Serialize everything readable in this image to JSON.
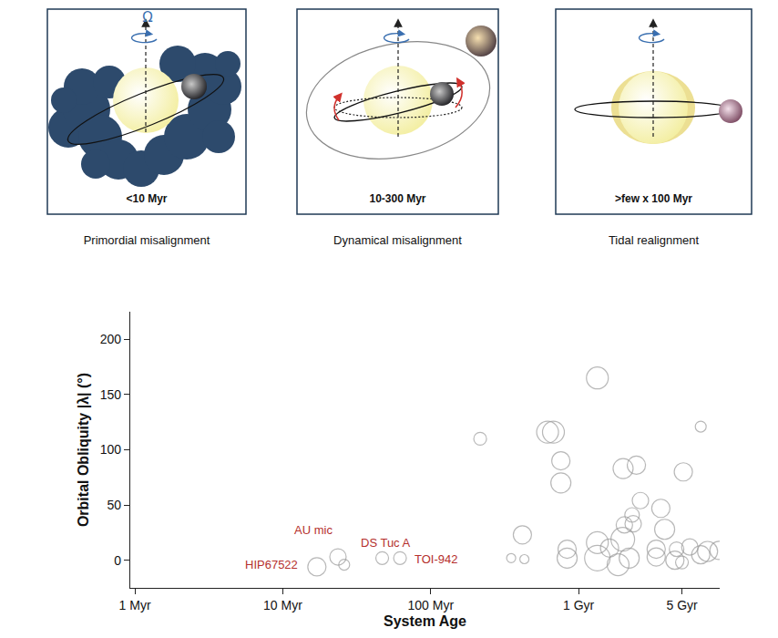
{
  "diagram": {
    "omega_label": "Ω",
    "panels": [
      {
        "age": "<10 Myr",
        "caption": "Primordial misalignment"
      },
      {
        "age": "10-300 Myr",
        "caption": "Dynamical misalignment"
      },
      {
        "age": ">few x 100 Myr",
        "caption": "Tidal realignment"
      }
    ]
  },
  "chart_data": {
    "type": "scatter",
    "marker": "circle-open",
    "color": "#9a9a9a",
    "x_label": "System Age",
    "y_label": "Orbital Obliquity |λ| (°)",
    "log": "x",
    "grid": false,
    "xlim": [
      0.93,
      9000
    ],
    "xticks": [
      {
        "value": 1,
        "label": "1 Myr"
      },
      {
        "value": 10,
        "label": "10 Myr"
      },
      {
        "value": 100,
        "label": "100 Myr"
      },
      {
        "value": 1000,
        "label": "1 Gyr"
      },
      {
        "value": 5000,
        "label": "5 Gyr"
      }
    ],
    "ylim": [
      -25,
      225
    ],
    "yticks": [
      0,
      50,
      100,
      150,
      200
    ],
    "x": [
      17,
      23.6,
      26,
      47,
      62,
      216,
      350,
      430,
      417,
      617,
      676,
      759,
      759,
      837,
      837,
      1340,
      1340,
      1340,
      1620,
      1850,
      1990,
      2040,
      2340,
      2300,
      2200,
      2000,
      2460,
      2620,
      3350,
      3350,
      3600,
      3820,
      4480,
      5110,
      4600,
      5650,
      6700,
      6700,
      7450,
      8900,
      5000
    ],
    "values": [
      -6,
      3,
      -4,
      2,
      2,
      110,
      2,
      1,
      23,
      116,
      116,
      70,
      90,
      2,
      10,
      165,
      2,
      16,
      11,
      -4,
      19,
      32,
      33,
      41,
      2,
      83,
      86,
      54,
      3,
      10,
      47,
      28,
      0,
      80,
      10,
      12,
      5,
      121,
      8,
      9,
      -2
    ],
    "size": [
      20,
      18,
      12,
      14,
      14,
      14,
      10,
      10,
      20,
      24,
      24,
      22,
      20,
      22,
      20,
      24,
      28,
      24,
      20,
      24,
      26,
      18,
      18,
      16,
      22,
      22,
      20,
      18,
      20,
      20,
      20,
      22,
      20,
      20,
      16,
      18,
      20,
      12,
      22,
      20,
      14
    ],
    "annotations": [
      {
        "text": "HIP67522",
        "x": 8.4,
        "y": -4
      },
      {
        "text": "AU mic",
        "x": 16.2,
        "y": 27
      },
      {
        "text": "DS Tuc A",
        "x": 50,
        "y": 16
      },
      {
        "text": "TOI-942",
        "x": 109,
        "y": 1
      }
    ]
  }
}
